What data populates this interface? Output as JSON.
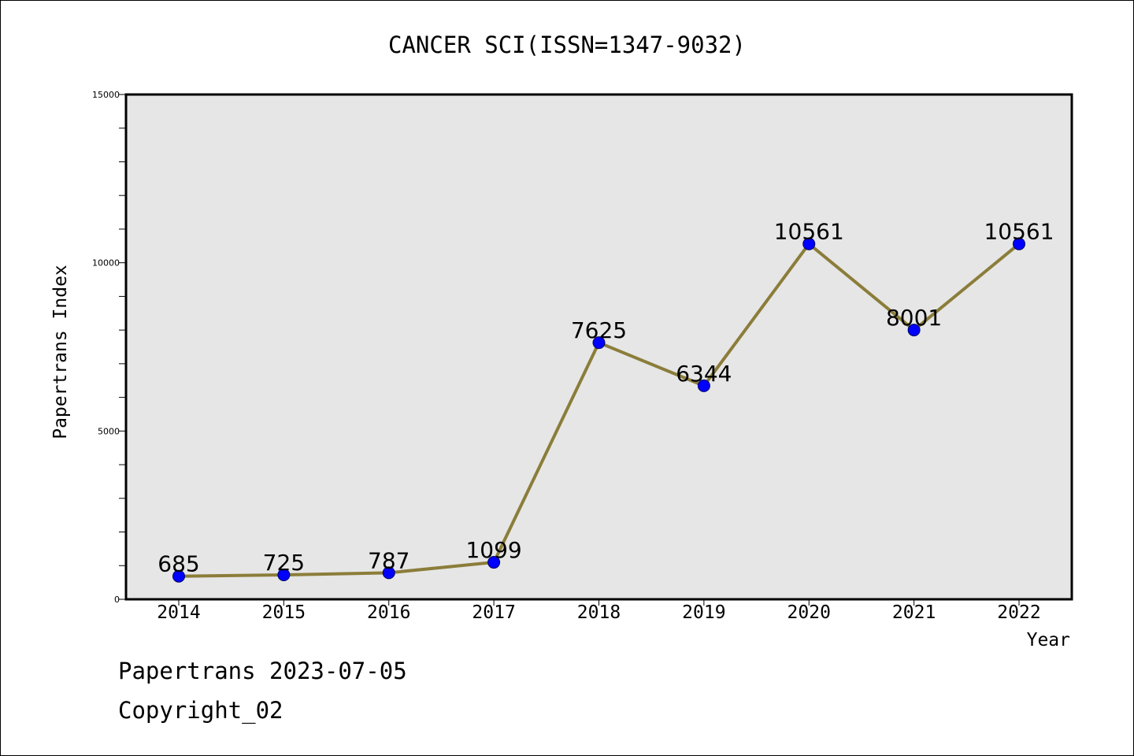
{
  "chart_data": {
    "type": "line",
    "title": "CANCER SCI(ISSN=1347-9032)",
    "xlabel": "Year",
    "ylabel": "Papertrans Index",
    "categories": [
      "2014",
      "2015",
      "2016",
      "2017",
      "2018",
      "2019",
      "2020",
      "2021",
      "2022"
    ],
    "values": [
      685,
      725,
      787,
      1099,
      7625,
      6344,
      10561,
      8001,
      10561
    ],
    "data_labels": [
      "685",
      "725",
      "787",
      "1099",
      "7625",
      "6344",
      "10561",
      "8001",
      "10561"
    ],
    "ylim": [
      0,
      15000
    ],
    "y_major_ticks": [
      "0",
      "5000",
      "10000",
      "15000"
    ],
    "y_minor_step": 1000,
    "grid": false,
    "line_color": "#8b7d3a",
    "marker_color": "#0000ff",
    "plot_background": "#e6e6e6"
  },
  "footer": {
    "date_text": "Papertrans 2023-07-05",
    "copyright_text": "Copyright_02"
  }
}
